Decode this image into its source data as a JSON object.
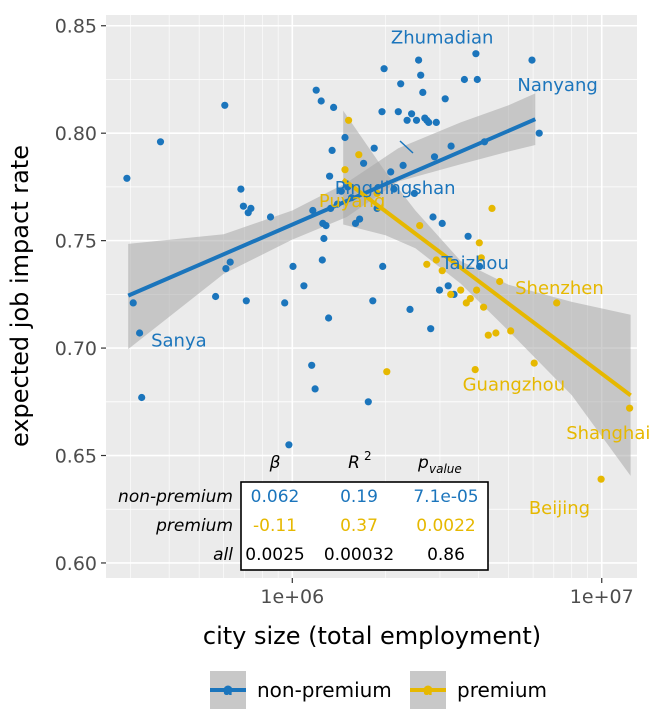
{
  "chart_data": {
    "type": "scatter",
    "xlabel": "city size (total employment)",
    "ylabel": "expected job impact rate",
    "x_scale": "log10",
    "xlim": [
      250000,
      13000000
    ],
    "ylim": [
      0.593,
      0.855
    ],
    "x_ticks": [
      {
        "value": 1000000,
        "label": "1e+06"
      },
      {
        "value": 10000000,
        "label": "1e+07"
      }
    ],
    "y_ticks": [
      {
        "value": 0.6,
        "label": "0.60"
      },
      {
        "value": 0.65,
        "label": "0.65"
      },
      {
        "value": 0.7,
        "label": "0.70"
      },
      {
        "value": 0.75,
        "label": "0.75"
      },
      {
        "value": 0.8,
        "label": "0.80"
      },
      {
        "value": 0.85,
        "label": "0.85"
      }
    ],
    "grid": true,
    "panel_background": "#ebebeb",
    "colors": {
      "non-premium": "#1b75bc",
      "premium": "#e6b800",
      "band": "#a8a8a8"
    },
    "legend": {
      "position": "bottom",
      "entries": [
        "non-premium",
        "premium"
      ],
      "key_glyph": "a"
    },
    "series": [
      {
        "name": "non-premium",
        "color": "#1b75bc",
        "points": [
          [
            292000,
            0.779
          ],
          [
            306000,
            0.721
          ],
          [
            321000,
            0.707
          ],
          [
            326000,
            0.677
          ],
          [
            375000,
            0.796
          ],
          [
            565000,
            0.724
          ],
          [
            605000,
            0.813
          ],
          [
            610000,
            0.737
          ],
          [
            630000,
            0.74
          ],
          [
            682000,
            0.774
          ],
          [
            695000,
            0.766
          ],
          [
            710000,
            0.722
          ],
          [
            720000,
            0.763
          ],
          [
            735000,
            0.765
          ],
          [
            850000,
            0.761
          ],
          [
            945000,
            0.721
          ],
          [
            975000,
            0.655
          ],
          [
            1005000,
            0.738
          ],
          [
            1090000,
            0.729
          ],
          [
            1155000,
            0.692
          ],
          [
            1165000,
            0.764
          ],
          [
            1185000,
            0.681
          ],
          [
            1195000,
            0.82
          ],
          [
            1240000,
            0.815
          ],
          [
            1250000,
            0.741
          ],
          [
            1255000,
            0.758
          ],
          [
            1265000,
            0.751
          ],
          [
            1285000,
            0.757
          ],
          [
            1310000,
            0.714
          ],
          [
            1320000,
            0.78
          ],
          [
            1330000,
            0.765
          ],
          [
            1345000,
            0.792
          ],
          [
            1360000,
            0.812
          ],
          [
            1400000,
            0.767
          ],
          [
            1440000,
            0.773
          ],
          [
            1480000,
            0.798
          ],
          [
            1510000,
            0.775
          ],
          [
            1555000,
            0.77
          ],
          [
            1600000,
            0.758
          ],
          [
            1650000,
            0.76
          ],
          [
            1700000,
            0.786
          ],
          [
            1760000,
            0.675
          ],
          [
            1820000,
            0.722
          ],
          [
            1840000,
            0.793
          ],
          [
            1880000,
            0.765
          ],
          [
            1950000,
            0.81
          ],
          [
            1960000,
            0.738
          ],
          [
            1980000,
            0.83
          ],
          [
            2080000,
            0.782
          ],
          [
            2130000,
            0.774
          ],
          [
            2200000,
            0.81
          ],
          [
            2240000,
            0.823
          ],
          [
            2280000,
            0.785
          ],
          [
            2350000,
            0.806
          ],
          [
            2400000,
            0.718
          ],
          [
            2430000,
            0.809
          ],
          [
            2480000,
            0.772
          ],
          [
            2520000,
            0.806
          ],
          [
            2560000,
            0.834
          ],
          [
            2600000,
            0.827
          ],
          [
            2640000,
            0.819
          ],
          [
            2680000,
            0.807
          ],
          [
            2720000,
            0.806
          ],
          [
            2760000,
            0.805
          ],
          [
            2800000,
            0.709
          ],
          [
            2850000,
            0.761
          ],
          [
            2880000,
            0.789
          ],
          [
            2920000,
            0.805
          ],
          [
            2990000,
            0.727
          ],
          [
            3050000,
            0.758
          ],
          [
            3120000,
            0.816
          ],
          [
            3190000,
            0.729
          ],
          [
            3260000,
            0.794
          ],
          [
            3330000,
            0.725
          ],
          [
            3600000,
            0.825
          ],
          [
            3700000,
            0.752
          ],
          [
            3920000,
            0.837
          ],
          [
            3960000,
            0.825
          ],
          [
            4030000,
            0.738
          ],
          [
            4180000,
            0.796
          ],
          [
            5950000,
            0.834
          ],
          [
            6280000,
            0.8
          ]
        ],
        "fit": {
          "x_start": 295000,
          "x_end": 6100000,
          "y_start": 0.7244,
          "y_end": 0.8065
        },
        "band_polygon": [
          [
            295000,
            0.6995
          ],
          [
            600000,
            0.7345
          ],
          [
            1000000,
            0.7505
          ],
          [
            1500000,
            0.761
          ],
          [
            2200000,
            0.7775
          ],
          [
            3500000,
            0.7855
          ],
          [
            5000000,
            0.7915
          ],
          [
            6100000,
            0.7945
          ],
          [
            6100000,
            0.8185
          ],
          [
            5000000,
            0.813
          ],
          [
            3500000,
            0.805
          ],
          [
            2200000,
            0.793
          ],
          [
            1500000,
            0.777
          ],
          [
            1000000,
            0.764
          ],
          [
            600000,
            0.753
          ],
          [
            295000,
            0.7485
          ]
        ]
      },
      {
        "name": "premium",
        "color": "#e6b800",
        "points": [
          [
            1480000,
            0.783
          ],
          [
            1520000,
            0.806
          ],
          [
            1640000,
            0.79
          ],
          [
            1880000,
            0.772
          ],
          [
            2020000,
            0.689
          ],
          [
            2580000,
            0.757
          ],
          [
            2720000,
            0.739
          ],
          [
            2920000,
            0.741
          ],
          [
            3050000,
            0.736
          ],
          [
            3250000,
            0.725
          ],
          [
            3500000,
            0.727
          ],
          [
            3650000,
            0.721
          ],
          [
            3760000,
            0.723
          ],
          [
            3900000,
            0.69
          ],
          [
            3940000,
            0.727
          ],
          [
            4020000,
            0.749
          ],
          [
            4080000,
            0.742
          ],
          [
            4150000,
            0.719
          ],
          [
            4300000,
            0.706
          ],
          [
            4420000,
            0.765
          ],
          [
            4550000,
            0.707
          ],
          [
            4680000,
            0.731
          ],
          [
            5080000,
            0.708
          ],
          [
            6050000,
            0.693
          ],
          [
            7150000,
            0.721
          ],
          [
            9950000,
            0.639
          ],
          [
            12300000,
            0.672
          ]
        ],
        "fit": {
          "x_start": 1460000,
          "x_end": 12400000,
          "y_start": 0.7785,
          "y_end": 0.678
        },
        "band_polygon": [
          [
            1460000,
            0.7575
          ],
          [
            2000000,
            0.7525
          ],
          [
            2500000,
            0.7465
          ],
          [
            3500000,
            0.73
          ],
          [
            5000000,
            0.708
          ],
          [
            8000000,
            0.678
          ],
          [
            12400000,
            0.6405
          ],
          [
            12400000,
            0.7155
          ],
          [
            8000000,
            0.7215
          ],
          [
            5000000,
            0.7295
          ],
          [
            3500000,
            0.7405
          ],
          [
            2500000,
            0.764
          ],
          [
            2000000,
            0.782
          ],
          [
            1460000,
            0.8105
          ]
        ]
      }
    ],
    "city_labels": [
      {
        "text": "Zhumadian",
        "series": "non-premium",
        "x": 3050000,
        "y": 0.8445
      },
      {
        "text": "Nanyang",
        "series": "non-premium",
        "x": 7200000,
        "y": 0.8225
      },
      {
        "text": "Pingdingshan",
        "series": "non-premium",
        "x": 2150000,
        "y": 0.7745
      },
      {
        "text": "Taizhou",
        "series": "non-premium",
        "x": 3900000,
        "y": 0.7395
      },
      {
        "text": "Sanya",
        "series": "non-premium",
        "x": 430000,
        "y": 0.7035
      },
      {
        "text": "Puyang",
        "series": "premium",
        "x": 1560000,
        "y": 0.7685
      },
      {
        "text": "Shenzhen",
        "series": "premium",
        "x": 7300000,
        "y": 0.728
      },
      {
        "text": "Guangzhou",
        "series": "premium",
        "x": 5200000,
        "y": 0.683
      },
      {
        "text": "Shanghai",
        "series": "premium",
        "x": 10500000,
        "y": 0.6605
      },
      {
        "text": "Beijing",
        "series": "premium",
        "x": 7300000,
        "y": 0.6255
      }
    ],
    "stats_table": {
      "headers": [
        "β",
        "R",
        "p"
      ],
      "header_superscript": "2",
      "header_subscript": "value",
      "rows": [
        {
          "label": "non-premium",
          "color": "#1b75bc",
          "values": [
            "0.062",
            "0.19",
            "7.1e-05"
          ]
        },
        {
          "label": "premium",
          "color": "#e6b800",
          "values": [
            "-0.11",
            "0.37",
            "0.0022"
          ]
        },
        {
          "label": "all",
          "color": "#000000",
          "values": [
            "0.0025",
            "0.00032",
            "0.86"
          ]
        }
      ]
    }
  }
}
